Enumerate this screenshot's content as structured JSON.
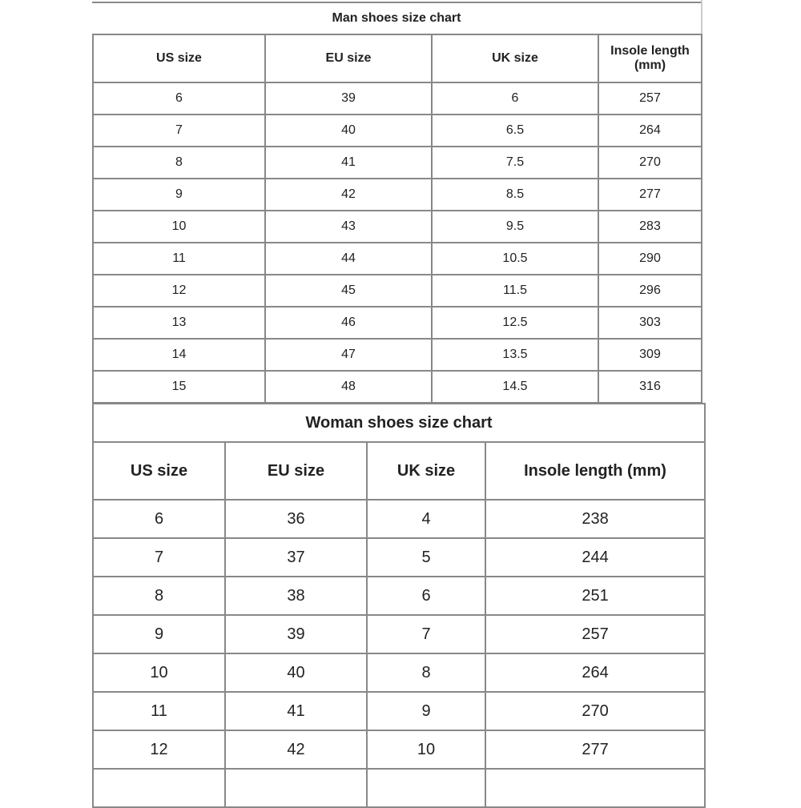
{
  "man": {
    "title": "Man shoes size chart",
    "headers": [
      "US size",
      "EU size",
      "UK size",
      "Insole length (mm)"
    ],
    "rows": [
      [
        "6",
        "39",
        "6",
        "257"
      ],
      [
        "7",
        "40",
        "6.5",
        "264"
      ],
      [
        "8",
        "41",
        "7.5",
        "270"
      ],
      [
        "9",
        "42",
        "8.5",
        "277"
      ],
      [
        "10",
        "43",
        "9.5",
        "283"
      ],
      [
        "11",
        "44",
        "10.5",
        "290"
      ],
      [
        "12",
        "45",
        "11.5",
        "296"
      ],
      [
        "13",
        "46",
        "12.5",
        "303"
      ],
      [
        "14",
        "47",
        "13.5",
        "309"
      ],
      [
        "15",
        "48",
        "14.5",
        "316"
      ]
    ]
  },
  "woman": {
    "title": "Woman shoes size chart",
    "headers": [
      "US size",
      "EU size",
      "UK size",
      "Insole length (mm)"
    ],
    "rows": [
      [
        "6",
        "36",
        "4",
        "238"
      ],
      [
        "7",
        "37",
        "5",
        "244"
      ],
      [
        "8",
        "38",
        "6",
        "251"
      ],
      [
        "9",
        "39",
        "7",
        "257"
      ],
      [
        "10",
        "40",
        "8",
        "264"
      ],
      [
        "11",
        "41",
        "9",
        "270"
      ],
      [
        "12",
        "42",
        "10",
        "277"
      ],
      [
        "",
        "",
        "",
        ""
      ]
    ]
  }
}
